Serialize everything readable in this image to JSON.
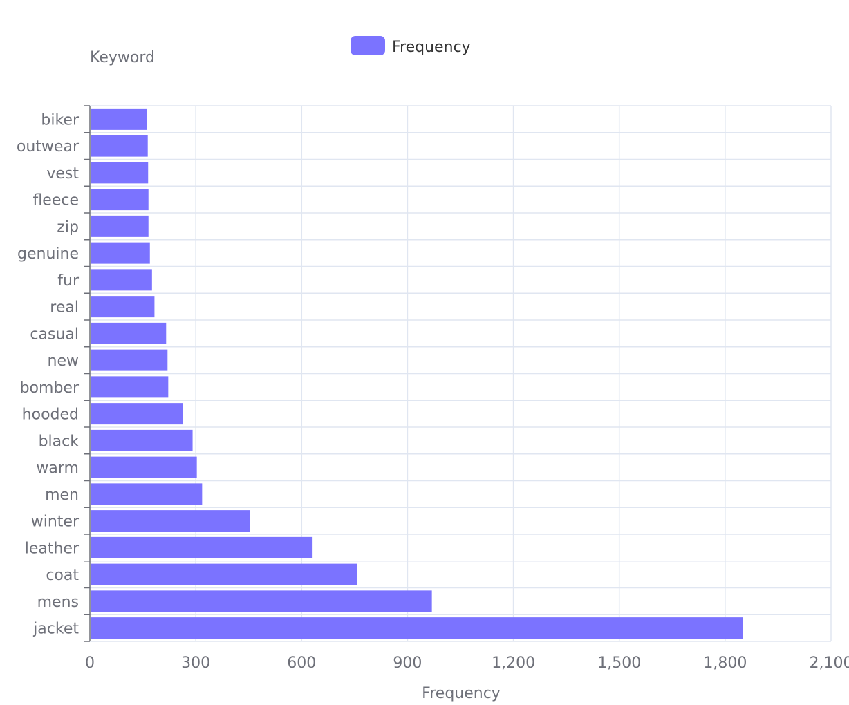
{
  "chart_data": {
    "type": "bar",
    "orientation": "horizontal",
    "categories": [
      "biker",
      "outwear",
      "vest",
      "fleece",
      "zip",
      "genuine",
      "fur",
      "real",
      "casual",
      "new",
      "bomber",
      "hooded",
      "black",
      "warm",
      "men",
      "winter",
      "leather",
      "coat",
      "mens",
      "jacket"
    ],
    "series": [
      {
        "name": "Frequency",
        "values": [
          162,
          164,
          165,
          166,
          166,
          170,
          176,
          183,
          216,
          220,
          222,
          264,
          291,
          303,
          318,
          453,
          631,
          758,
          969,
          1850
        ]
      }
    ],
    "xlabel": "Frequency",
    "ylabel": "Keyword",
    "xlim": [
      0,
      2100
    ],
    "xticks": [
      "0",
      "300",
      "600",
      "900",
      "1,200",
      "1,500",
      "1,800",
      "2,100"
    ],
    "grid": true,
    "legend": "top-center"
  },
  "colors": {
    "bar": "#7b73ff",
    "grid": "#e0e6f1",
    "axis": "#6e7079"
  }
}
